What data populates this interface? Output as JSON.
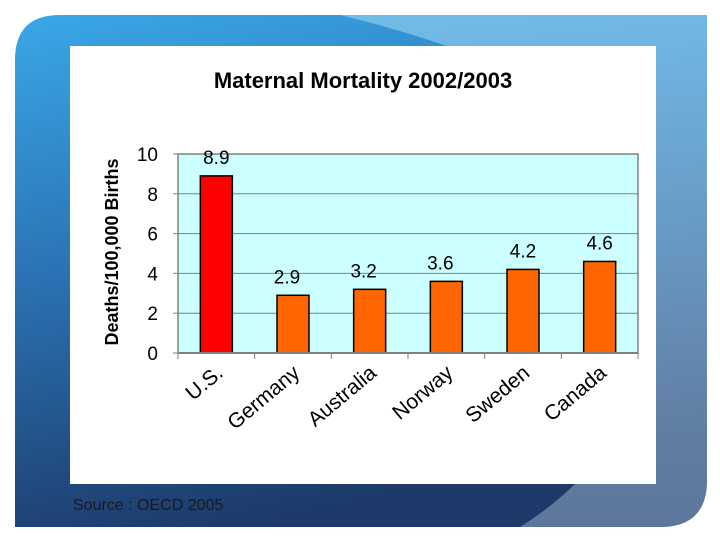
{
  "slide": {
    "source": "Source : OECD 2005"
  },
  "chart_data": {
    "type": "bar",
    "title": "Maternal Mortality 2002/2003",
    "xlabel": "",
    "ylabel": "Deaths/100,000 Births",
    "categories": [
      "U.S.",
      "Germany",
      "Australia",
      "Norway",
      "Sweden",
      "Canada"
    ],
    "values": [
      8.9,
      2.9,
      3.2,
      3.6,
      4.2,
      4.6
    ],
    "data_labels": [
      "8.9",
      "2.9",
      "3.2",
      "3.6",
      "4.2",
      "4.6"
    ],
    "ylim": [
      0,
      10
    ],
    "yticks": [
      "0",
      "2",
      "4",
      "6",
      "8",
      "10"
    ],
    "grid": true,
    "colors": {
      "highlight_bar": "#ff0000",
      "bar": "#ff6600",
      "plot_background": "#ccffff"
    },
    "highlight_index": 0
  }
}
